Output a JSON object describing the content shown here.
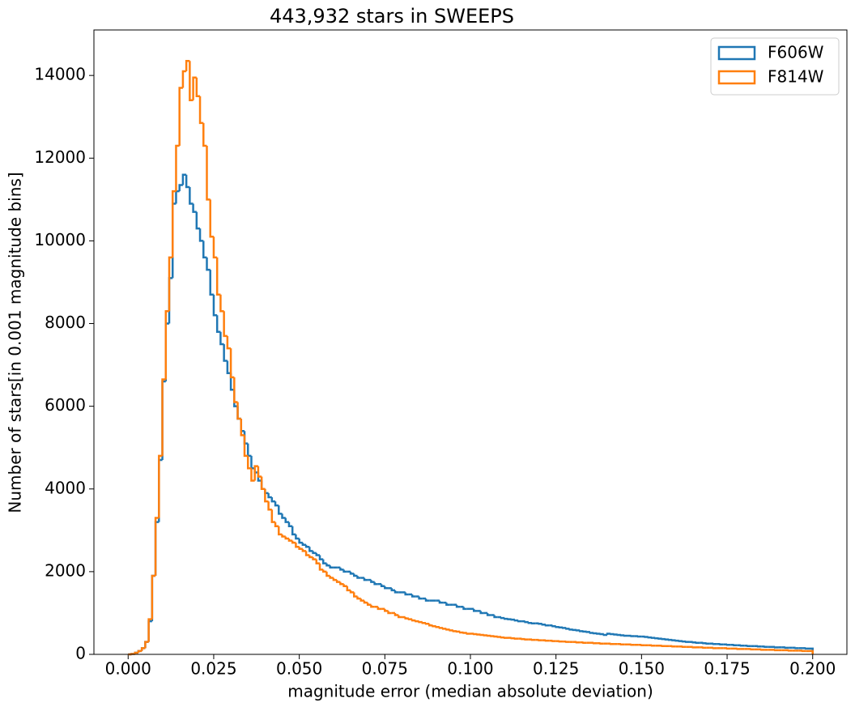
{
  "chart_data": {
    "type": "histogram",
    "title": "443,932 stars in SWEEPS",
    "x_label": "magnitude error (median absolute deviation)",
    "y_label": "Number of stars[in 0.001 magnitude bins]",
    "xlim": [
      -0.01,
      0.21
    ],
    "ylim": [
      0,
      15100
    ],
    "xticks": [
      {
        "value": 0,
        "label": "0.000"
      },
      {
        "value": 0.025,
        "label": "0.025"
      },
      {
        "value": 0.05,
        "label": "0.050"
      },
      {
        "value": 0.075,
        "label": "0.075"
      },
      {
        "value": 0.1,
        "label": "0.100"
      },
      {
        "value": 0.125,
        "label": "0.125"
      },
      {
        "value": 0.15,
        "label": "0.150"
      },
      {
        "value": 0.175,
        "label": "0.175"
      },
      {
        "value": 0.2,
        "label": "0.200"
      }
    ],
    "yticks": [
      0,
      2000,
      4000,
      6000,
      8000,
      10000,
      12000,
      14000
    ],
    "legend": "upper right",
    "bins": [
      0,
      0.001,
      0.002,
      0.003,
      0.004,
      0.005,
      0.006,
      0.007,
      0.008,
      0.009,
      0.01,
      0.011,
      0.012,
      0.013,
      0.014,
      0.015,
      0.016,
      0.017,
      0.018,
      0.019,
      0.02,
      0.021,
      0.022,
      0.023,
      0.024,
      0.025,
      0.026,
      0.027,
      0.028,
      0.029,
      0.03,
      0.031,
      0.032,
      0.033,
      0.034,
      0.035,
      0.036,
      0.037,
      0.038,
      0.039,
      0.04,
      0.041,
      0.042,
      0.043,
      0.044,
      0.045,
      0.046,
      0.047,
      0.048,
      0.049,
      0.05,
      0.051,
      0.052,
      0.053,
      0.054,
      0.055,
      0.056,
      0.057,
      0.058,
      0.059,
      0.06,
      0.061,
      0.062,
      0.063,
      0.064,
      0.065,
      0.066,
      0.067,
      0.068,
      0.069,
      0.07,
      0.071,
      0.072,
      0.073,
      0.074,
      0.075,
      0.076,
      0.077,
      0.078,
      0.079,
      0.08,
      0.081,
      0.082,
      0.083,
      0.084,
      0.085,
      0.086,
      0.087,
      0.088,
      0.089,
      0.09,
      0.091,
      0.092,
      0.093,
      0.094,
      0.095,
      0.096,
      0.097,
      0.098,
      0.099,
      0.1,
      0.101,
      0.102,
      0.103,
      0.104,
      0.105,
      0.106,
      0.107,
      0.108,
      0.109,
      0.11,
      0.111,
      0.112,
      0.113,
      0.114,
      0.115,
      0.116,
      0.117,
      0.118,
      0.119,
      0.12,
      0.121,
      0.122,
      0.123,
      0.124,
      0.125,
      0.126,
      0.127,
      0.128,
      0.129,
      0.13,
      0.131,
      0.132,
      0.133,
      0.134,
      0.135,
      0.136,
      0.137,
      0.138,
      0.139,
      0.14,
      0.141,
      0.142,
      0.143,
      0.144,
      0.145,
      0.146,
      0.147,
      0.148,
      0.149,
      0.15,
      0.151,
      0.152,
      0.153,
      0.154,
      0.155,
      0.156,
      0.157,
      0.158,
      0.159,
      0.16,
      0.161,
      0.162,
      0.163,
      0.164,
      0.165,
      0.166,
      0.167,
      0.168,
      0.169,
      0.17,
      0.171,
      0.172,
      0.173,
      0.174,
      0.175,
      0.176,
      0.177,
      0.178,
      0.179,
      0.18,
      0.181,
      0.182,
      0.183,
      0.184,
      0.185,
      0.186,
      0.187,
      0.188,
      0.189,
      0.19,
      0.191,
      0.192,
      0.193,
      0.194,
      0.195,
      0.196,
      0.197,
      0.198,
      0.199,
      0.2
    ],
    "series": [
      {
        "name": "F606W",
        "color": "#1f77b4",
        "values": [
          0,
          10,
          40,
          80,
          150,
          300,
          800,
          1900,
          3200,
          4700,
          6600,
          8000,
          9100,
          10900,
          11200,
          11350,
          11600,
          11300,
          10900,
          10700,
          10300,
          10000,
          9600,
          9300,
          8700,
          8200,
          7800,
          7500,
          7100,
          6800,
          6400,
          6000,
          5700,
          5400,
          5100,
          4800,
          4500,
          4400,
          4200,
          4000,
          3900,
          3800,
          3700,
          3600,
          3400,
          3300,
          3200,
          3100,
          2900,
          2800,
          2700,
          2650,
          2600,
          2500,
          2450,
          2400,
          2300,
          2200,
          2150,
          2100,
          2100,
          2100,
          2050,
          2000,
          2000,
          1950,
          1900,
          1850,
          1850,
          1800,
          1800,
          1750,
          1700,
          1700,
          1650,
          1600,
          1600,
          1550,
          1500,
          1500,
          1500,
          1450,
          1450,
          1400,
          1400,
          1350,
          1350,
          1300,
          1300,
          1300,
          1300,
          1250,
          1250,
          1200,
          1200,
          1200,
          1150,
          1150,
          1100,
          1100,
          1100,
          1050,
          1050,
          1000,
          1000,
          950,
          950,
          900,
          900,
          880,
          860,
          850,
          840,
          820,
          800,
          800,
          780,
          760,
          750,
          750,
          740,
          720,
          700,
          700,
          680,
          660,
          650,
          640,
          620,
          600,
          590,
          580,
          560,
          550,
          540,
          520,
          510,
          500,
          490,
          470,
          500,
          490,
          480,
          470,
          460,
          450,
          450,
          440,
          440,
          430,
          430,
          420,
          410,
          400,
          390,
          380,
          370,
          360,
          350,
          340,
          330,
          320,
          310,
          300,
          300,
          290,
          280,
          280,
          270,
          260,
          260,
          250,
          250,
          240,
          240,
          230,
          230,
          220,
          220,
          210,
          210,
          200,
          200,
          200,
          190,
          190,
          180,
          180,
          180,
          170,
          170,
          170,
          160,
          160,
          160,
          150,
          150,
          150,
          140,
          140
        ]
      },
      {
        "name": "F814W",
        "color": "#ff7f0e",
        "values": [
          0,
          10,
          40,
          80,
          150,
          300,
          850,
          1900,
          3300,
          4800,
          6650,
          8300,
          9600,
          11200,
          12300,
          13700,
          14100,
          14350,
          13400,
          13950,
          13500,
          12850,
          12300,
          11000,
          10100,
          9600,
          8700,
          8300,
          7700,
          7400,
          6700,
          6100,
          5700,
          5300,
          4800,
          4500,
          4200,
          4550,
          4300,
          4000,
          3700,
          3500,
          3200,
          3100,
          2900,
          2850,
          2800,
          2750,
          2700,
          2600,
          2550,
          2500,
          2400,
          2350,
          2300,
          2200,
          2050,
          2000,
          1900,
          1850,
          1800,
          1750,
          1700,
          1650,
          1550,
          1500,
          1400,
          1350,
          1300,
          1250,
          1200,
          1150,
          1150,
          1100,
          1100,
          1050,
          1000,
          1000,
          950,
          900,
          900,
          870,
          850,
          820,
          800,
          780,
          760,
          740,
          700,
          680,
          660,
          640,
          620,
          600,
          580,
          560,
          550,
          530,
          520,
          500,
          500,
          490,
          480,
          470,
          460,
          450,
          440,
          430,
          420,
          410,
          400,
          400,
          390,
          380,
          380,
          370,
          360,
          360,
          350,
          350,
          340,
          340,
          330,
          330,
          320,
          320,
          310,
          310,
          300,
          300,
          300,
          290,
          290,
          280,
          280,
          280,
          270,
          270,
          260,
          260,
          260,
          250,
          250,
          250,
          240,
          240,
          240,
          230,
          230,
          230,
          220,
          220,
          220,
          210,
          210,
          210,
          200,
          200,
          200,
          190,
          190,
          190,
          180,
          180,
          180,
          170,
          170,
          170,
          160,
          160,
          160,
          150,
          150,
          150,
          150,
          140,
          140,
          140,
          130,
          130,
          130,
          130,
          120,
          120,
          120,
          110,
          110,
          110,
          110,
          100,
          100,
          100,
          100,
          90,
          90,
          90,
          90,
          80,
          80,
          80
        ]
      }
    ]
  }
}
